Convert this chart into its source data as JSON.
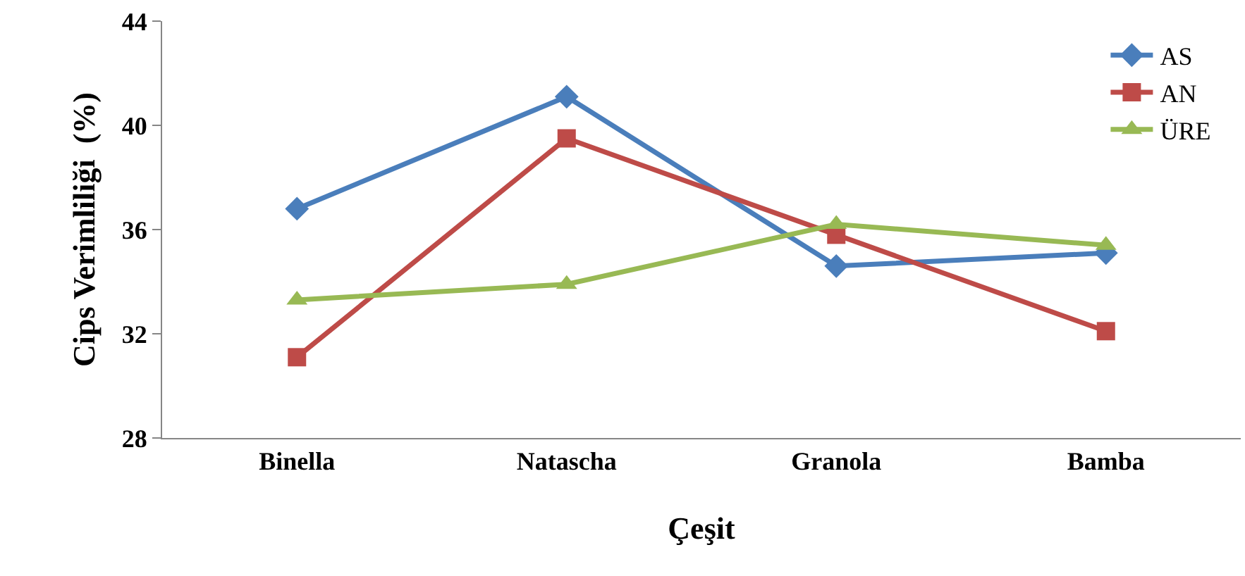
{
  "chart_data": {
    "type": "line",
    "xlabel": "Çeşit",
    "ylabel": "Cips Verimliliği  (%)",
    "categories": [
      "Binella",
      "Natascha",
      "Granola",
      "Bamba"
    ],
    "series": [
      {
        "name": "AS",
        "color": "#4a7ebb",
        "marker": "diamond",
        "values": [
          36.8,
          41.1,
          34.6,
          35.1
        ]
      },
      {
        "name": "AN",
        "color": "#be4b48",
        "marker": "square",
        "values": [
          31.1,
          39.5,
          35.8,
          32.1
        ]
      },
      {
        "name": "ÜRE",
        "color": "#98b954",
        "marker": "triangle",
        "values": [
          33.3,
          33.9,
          36.2,
          35.4
        ]
      }
    ],
    "ylim": [
      28,
      44
    ],
    "yticks": [
      28,
      32,
      36,
      40,
      44
    ],
    "grid": false,
    "legend": "top right",
    "line_style": "solid"
  }
}
